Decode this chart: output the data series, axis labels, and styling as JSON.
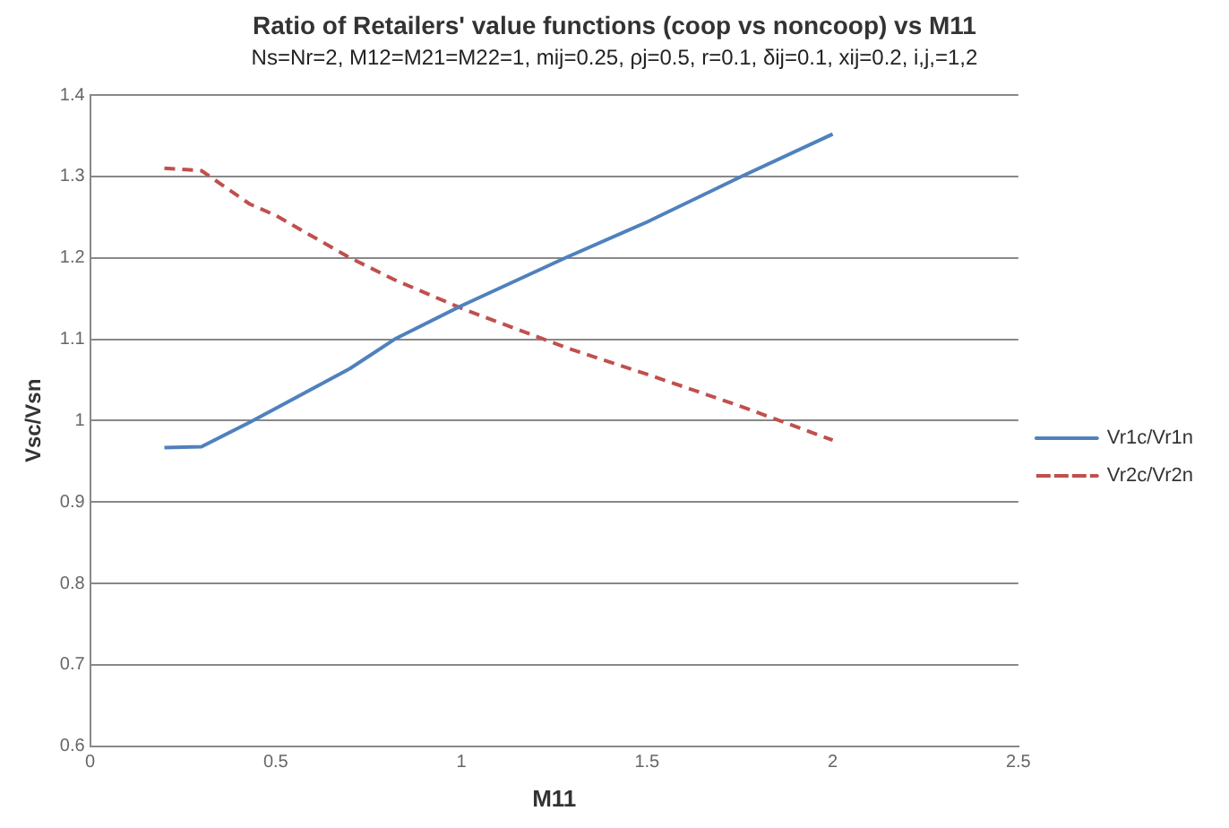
{
  "chart_data": {
    "type": "line",
    "title": "Ratio of Retailers' value functions (coop vs noncoop) vs M11",
    "subtitle": "Ns=Nr=2, M12=M21=M22=1,  mij=0.25, ρj=0.5, r=0.1, δij=0.1, xij=0.2,  i,j,=1,2",
    "xlabel": "M11",
    "ylabel": "Vsc/Vsn",
    "x": [
      0.2,
      0.3,
      0.43,
      0.5,
      0.7,
      0.82,
      1.0,
      1.28,
      1.5,
      1.75,
      2.0
    ],
    "series": [
      {
        "name": "Vr1c/Vr1n",
        "color": "#4f81bd",
        "line_style": "solid",
        "values": [
          0.967,
          0.968,
          0.998,
          1.015,
          1.064,
          1.1,
          1.141,
          1.2,
          1.244,
          1.299,
          1.352
        ]
      },
      {
        "name": "Vr2c/Vr2n",
        "color": "#c0504d",
        "line_style": "dashed",
        "values": [
          1.31,
          1.307,
          1.266,
          1.252,
          1.2,
          1.173,
          1.138,
          1.09,
          1.057,
          1.018,
          0.976
        ]
      }
    ],
    "xlim": [
      0,
      2.5
    ],
    "xticks": [
      0,
      0.5,
      1,
      1.5,
      2,
      2.5
    ],
    "ylim": [
      0.6,
      1.4
    ],
    "yticks": [
      0.6,
      0.7,
      0.8,
      0.9,
      1,
      1.1,
      1.2,
      1.3,
      1.4
    ],
    "grid": "y",
    "legend": "right",
    "marker": "none"
  }
}
